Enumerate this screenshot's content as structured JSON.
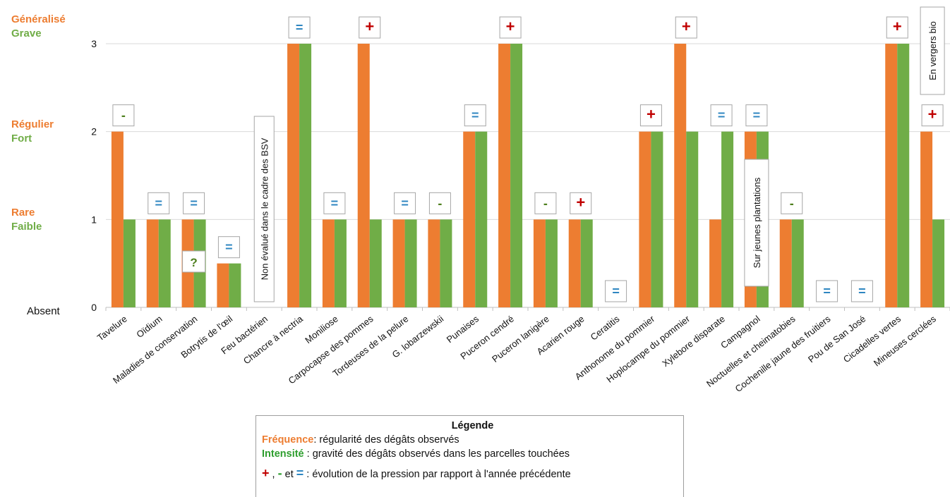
{
  "levels": [
    {
      "value": 3,
      "frequence": "Généralisé",
      "intensite": "Grave"
    },
    {
      "value": 2,
      "frequence": "Régulier",
      "intensite": "Fort"
    },
    {
      "value": 1,
      "frequence": "Rare",
      "intensite": "Faible"
    },
    {
      "value": 0,
      "label": "Absent"
    }
  ],
  "colors": {
    "frequence": "#ED7D31",
    "intensite": "#70AD47",
    "plus": "#C00000",
    "minus": "#4E7F1E",
    "equal": "#2E86C1",
    "question": "#4E7F1E"
  },
  "chart_data": {
    "type": "bar",
    "ylim": [
      0,
      3
    ],
    "yticks": [
      "0",
      "1",
      "2",
      "3"
    ],
    "grid": true,
    "categories": [
      "Tavelure",
      "Oïdium",
      "Maladies de conservation",
      "Botrytis de l'œil",
      "Feu bactérien",
      "Chancre à nectria",
      "Moniliose",
      "Carpocapse des pommes",
      "Tordeuses de la pelure",
      "G. lobarzewskii",
      "Punaises",
      "Puceron cendré",
      "Puceron lanigère",
      "Acarien rouge",
      "Ceratitis",
      "Anthonome du pommier",
      "Hoplocampe du pommier",
      "Xylebore disparate",
      "Campagnol",
      "Noctuelles et cheimatobies",
      "Cochenille jaune des fruitiers",
      "Pou de San José",
      "Cicadelles vertes",
      "Mineuses cerclées"
    ],
    "series": [
      {
        "name": "Fréquence",
        "values": [
          2,
          1,
          1,
          0.5,
          0,
          3,
          1,
          3,
          1,
          1,
          2,
          3,
          1,
          1,
          0,
          2,
          3,
          1,
          2,
          1,
          0,
          0,
          3,
          2
        ]
      },
      {
        "name": "Intensité",
        "values": [
          1,
          1,
          1,
          0.5,
          0,
          3,
          1,
          1,
          1,
          1,
          2,
          3,
          1,
          1,
          0,
          2,
          2,
          2,
          2,
          1,
          0,
          0,
          3,
          1
        ]
      }
    ],
    "trends": [
      "-",
      "=",
      "=",
      "=",
      "",
      "=",
      "=",
      "+",
      "=",
      "-",
      "=",
      "+",
      "-",
      "+",
      "=",
      "+",
      "+",
      "=",
      "=",
      "-",
      "=",
      "=",
      "+",
      "+"
    ],
    "extra_marks": [
      {
        "category": "Maladies de conservation",
        "symbol": "?"
      }
    ],
    "notes": [
      {
        "category": "Feu bactérien",
        "text": "Non évalué dans le cadre des BSV"
      },
      {
        "category": "Campagnol",
        "text": "Sur jeunes plantations"
      },
      {
        "category": "Mineuses cerclées",
        "text": "En vergers bio"
      }
    ]
  },
  "legend": {
    "title": "Légende",
    "frequence_key": "Fréquence",
    "frequence_text": ": régularité des dégâts observés",
    "intensite_key": "Intensité",
    "intensite_text": " : gravité des dégâts observés dans les parcelles touchées",
    "symbol_plus": "+",
    "symbol_sep": " , ",
    "symbol_minus": "-",
    "symbol_and": " et ",
    "symbol_equal": "=",
    "symbol_text": " : évolution de la pression par rapport à l'année précédente"
  }
}
